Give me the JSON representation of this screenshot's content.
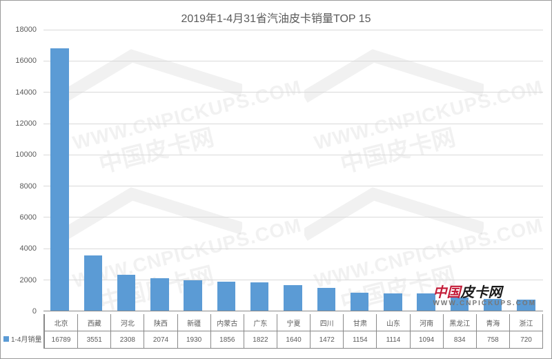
{
  "chart": {
    "type": "bar",
    "title": "2019年1-4月31省汽油皮卡销量TOP 15",
    "title_fontsize": 16,
    "title_color": "#595959",
    "background_color": "#ffffff",
    "ylim": [
      0,
      18000
    ],
    "ytick_step": 2000,
    "yticks": [
      0,
      2000,
      4000,
      6000,
      8000,
      10000,
      12000,
      14000,
      16000,
      18000
    ],
    "grid_color": "#d9d9d9",
    "axis_color": "#888888",
    "bar_color": "#5b9bd5",
    "bar_width": 0.56,
    "label_fontsize": 10,
    "tick_fontsize": 11,
    "series_name": "1-4月销量",
    "categories": [
      "北京",
      "西藏",
      "河北",
      "陕西",
      "新疆",
      "内蒙古",
      "广东",
      "宁夏",
      "四川",
      "甘肃",
      "山东",
      "河南",
      "黑龙江",
      "青海",
      "浙江"
    ],
    "values": [
      16789,
      3551,
      2308,
      2074,
      1930,
      1856,
      1822,
      1640,
      1472,
      1154,
      1114,
      1094,
      834,
      758,
      720
    ]
  },
  "watermarks": {
    "url": "WWW.CNPICKUPS.COM",
    "cn": "中国皮卡网",
    "logo_a": "中国",
    "logo_b": "皮卡网",
    "logo_sub": "WWW.CNPICKUPS.COM",
    "roof_color": "rgba(120,120,120,0.10)"
  }
}
